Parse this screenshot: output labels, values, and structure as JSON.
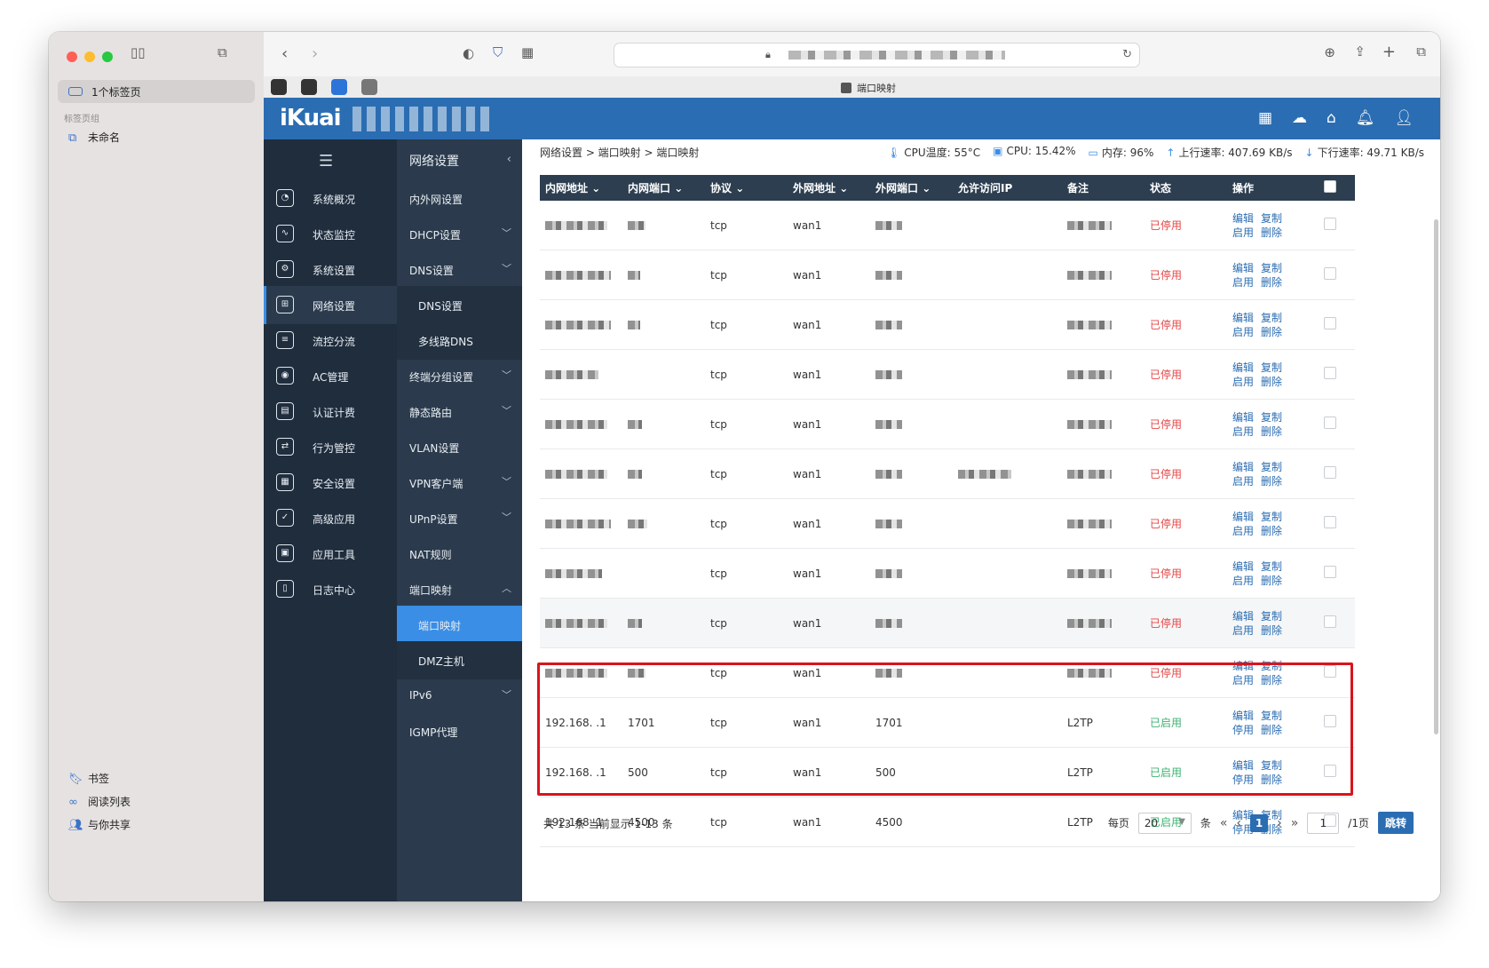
{
  "browser": {
    "sidebar_tab_label": "1个标签页",
    "tab_group_section": "标签页组",
    "tab_group_unnamed": "未命名",
    "bottom_items": [
      "书签",
      "阅读列表",
      "与你共享"
    ],
    "active_tab_title": "端口映射"
  },
  "app": {
    "logo": "iKuai",
    "nav_primary": [
      "系统概况",
      "状态监控",
      "系统设置",
      "网络设置",
      "流控分流",
      "AC管理",
      "认证计费",
      "行为管控",
      "安全设置",
      "高级应用",
      "应用工具",
      "日志中心"
    ],
    "nav_secondary_title": "网络设置",
    "nav_secondary": [
      {
        "label": "内外网设置",
        "type": "item"
      },
      {
        "label": "DHCP设置",
        "type": "group"
      },
      {
        "label": "DNS设置",
        "type": "group"
      },
      {
        "label": "DNS设置",
        "type": "sub"
      },
      {
        "label": "多线路DNS",
        "type": "sub"
      },
      {
        "label": "终端分组设置",
        "type": "group"
      },
      {
        "label": "静态路由",
        "type": "group"
      },
      {
        "label": "VLAN设置",
        "type": "item"
      },
      {
        "label": "VPN客户端",
        "type": "group"
      },
      {
        "label": "UPnP设置",
        "type": "group"
      },
      {
        "label": "NAT规则",
        "type": "item"
      },
      {
        "label": "端口映射",
        "type": "open"
      },
      {
        "label": "端口映射",
        "type": "sub-selected"
      },
      {
        "label": "DMZ主机",
        "type": "sub"
      },
      {
        "label": "IPv6",
        "type": "group"
      },
      {
        "label": "IGMP代理",
        "type": "item"
      }
    ]
  },
  "breadcrumb": "网络设置 > 端口映射 > 端口映射",
  "stats": {
    "cpu_temp": "CPU温度: 55°C",
    "cpu": "CPU: 15.42%",
    "mem": "内存: 96%",
    "upload": "上行速率: 407.69 KB/s",
    "download": "下行速率: 49.71 KB/s"
  },
  "table": {
    "headers": [
      "内网地址",
      "内网端口",
      "协议",
      "外网地址",
      "外网端口",
      "允许访问IP",
      "备注",
      "状态",
      "操作"
    ],
    "rows": [
      {
        "ip": "",
        "port": "",
        "proto": "tcp",
        "wan": "wan1",
        "wport": "",
        "allow": "",
        "note": "",
        "status": "已停用",
        "act2": "启用",
        "hl": false
      },
      {
        "ip": "",
        "port": "",
        "proto": "tcp",
        "wan": "wan1",
        "wport": "",
        "allow": "",
        "note": "",
        "status": "已停用",
        "act2": "启用",
        "hl": false
      },
      {
        "ip": "",
        "port": "",
        "proto": "tcp",
        "wan": "wan1",
        "wport": "",
        "allow": "",
        "note": "",
        "status": "已停用",
        "act2": "启用",
        "hl": false
      },
      {
        "ip": "",
        "port": "",
        "proto": "tcp",
        "wan": "wan1",
        "wport": "",
        "allow": "",
        "note": "",
        "status": "已停用",
        "act2": "启用",
        "hl": false
      },
      {
        "ip": "",
        "port": "",
        "proto": "tcp",
        "wan": "wan1",
        "wport": "",
        "allow": "",
        "note": "",
        "status": "已停用",
        "act2": "启用",
        "hl": false
      },
      {
        "ip": "",
        "port": "",
        "proto": "tcp",
        "wan": "wan1",
        "wport": "",
        "allow": "",
        "note": "",
        "status": "已停用",
        "act2": "启用",
        "hl": false
      },
      {
        "ip": "",
        "port": "",
        "proto": "tcp",
        "wan": "wan1",
        "wport": "",
        "allow": "",
        "note": "",
        "status": "已停用",
        "act2": "启用",
        "hl": false
      },
      {
        "ip": "",
        "port": "",
        "proto": "tcp",
        "wan": "wan1",
        "wport": "",
        "allow": "",
        "note": "",
        "status": "已停用",
        "act2": "启用",
        "hl": false
      },
      {
        "ip": "",
        "port": "",
        "proto": "tcp",
        "wan": "wan1",
        "wport": "",
        "allow": "",
        "note": "",
        "status": "已停用",
        "act2": "启用",
        "hl": true
      },
      {
        "ip": "",
        "port": "",
        "proto": "tcp",
        "wan": "wan1",
        "wport": "",
        "allow": "",
        "note": "",
        "status": "已停用",
        "act2": "启用",
        "hl": false
      },
      {
        "ip": "192.168.  .1",
        "port": "1701",
        "proto": "tcp",
        "wan": "wan1",
        "wport": "1701",
        "allow": "",
        "note": "L2TP",
        "status": "已启用",
        "act2": "停用",
        "hl": false
      },
      {
        "ip": "192.168.  .1",
        "port": "500",
        "proto": "tcp",
        "wan": "wan1",
        "wport": "500",
        "allow": "",
        "note": "L2TP",
        "status": "已启用",
        "act2": "停用",
        "hl": false
      },
      {
        "ip": "192.168.  1",
        "port": "4500",
        "proto": "tcp",
        "wan": "wan1",
        "wport": "4500",
        "allow": "",
        "note": "L2TP",
        "status": "已启用",
        "act2": "停用",
        "hl": false
      }
    ],
    "action_edit": "编辑",
    "action_copy": "复制",
    "action_delete": "删除"
  },
  "pager": {
    "total": "共 13 条 当前显示 1-13 条",
    "per_page_label": "每页",
    "per_page": "20",
    "unit": "条",
    "current_page": "1",
    "goto_value": "1",
    "total_pages": "/1页",
    "go": "跳转"
  },
  "colors": {
    "brand": "#2b6db2",
    "nav_dark": "#1f2d3d",
    "disabled": "#e64545",
    "enabled": "#3cb371",
    "highlight_box": "#d9141e"
  }
}
